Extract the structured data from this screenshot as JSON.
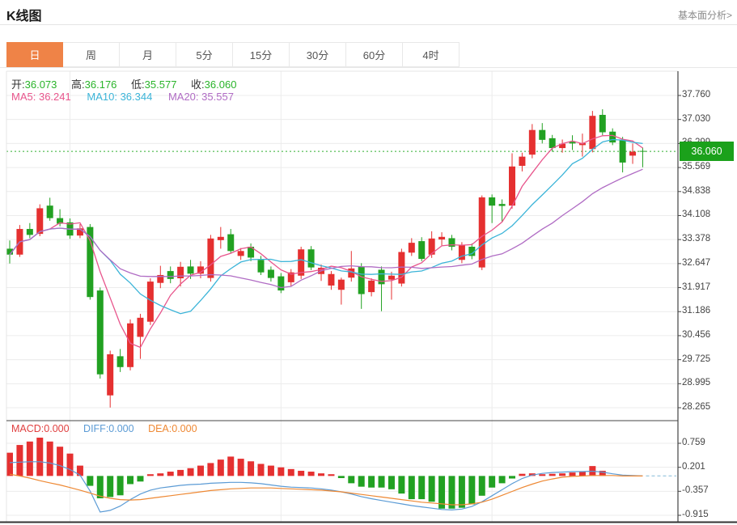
{
  "header": {
    "title": "K线图",
    "link_label": "基本面分析>"
  },
  "tabs": [
    {
      "label": "日",
      "active": true
    },
    {
      "label": "周",
      "active": false
    },
    {
      "label": "月",
      "active": false
    },
    {
      "label": "5分",
      "active": false
    },
    {
      "label": "15分",
      "active": false
    },
    {
      "label": "30分",
      "active": false
    },
    {
      "label": "60分",
      "active": false
    },
    {
      "label": "4时",
      "active": false
    }
  ],
  "legend": {
    "ohlc": [
      {
        "label": "开:",
        "value": "36.073"
      },
      {
        "label": "高:",
        "value": "36.176"
      },
      {
        "label": "低:",
        "value": "35.577"
      },
      {
        "label": "收:",
        "value": "36.060"
      }
    ],
    "ma": [
      {
        "label": "MA5:",
        "value": "36.241"
      },
      {
        "label": "MA10:",
        "value": "36.344"
      },
      {
        "label": "MA20:",
        "value": "35.557"
      }
    ]
  },
  "macd_legend": [
    {
      "label": "MACD:",
      "value": "0.000"
    },
    {
      "label": "DIFF:",
      "value": "0.000"
    },
    {
      "label": "DEA:",
      "value": "0.000"
    }
  ],
  "current_price_label": "36.060",
  "colors": {
    "up": "#e53030",
    "down": "#22a122",
    "ma5": "#e8558c",
    "ma10": "#3bb4d8",
    "ma20": "#b06cc4",
    "diff": "#5b9bd5",
    "dea": "#ee8833",
    "macd_label": "#e04040",
    "accent": "#ef8347",
    "badge": "#1ba11b",
    "value_green": "#2ab42a",
    "grid": "#ececec",
    "axis": "#444444",
    "dotted": "#2faf2f",
    "tail": "#a9cfe4"
  },
  "chart_data": {
    "type": "candlestick",
    "panels": [
      "price",
      "macd"
    ],
    "title": "K线图 (日)",
    "price_ticks": [
      37.76,
      37.03,
      36.299,
      35.569,
      34.838,
      34.108,
      33.378,
      32.647,
      31.917,
      31.186,
      30.456,
      29.725,
      28.995,
      28.265
    ],
    "macd_ticks": [
      0.759,
      0.201,
      -0.357,
      -0.915
    ],
    "current_price": 36.06,
    "ma_periods": [
      5,
      10,
      20
    ],
    "grid_candle_indices": [
      6,
      27,
      48
    ],
    "candles": [
      [
        33.1,
        33.35,
        32.65,
        32.92
      ],
      [
        32.92,
        33.82,
        32.85,
        33.7
      ],
      [
        33.7,
        33.88,
        33.42,
        33.52
      ],
      [
        33.55,
        34.45,
        33.48,
        34.33
      ],
      [
        34.41,
        34.65,
        33.95,
        34.03
      ],
      [
        34.03,
        34.3,
        33.78,
        33.86
      ],
      [
        33.9,
        34.02,
        33.4,
        33.5
      ],
      [
        33.5,
        33.85,
        33.42,
        33.72
      ],
      [
        33.76,
        33.85,
        31.55,
        31.63
      ],
      [
        31.83,
        31.92,
        29.15,
        29.28
      ],
      [
        28.64,
        30.0,
        28.27,
        29.89
      ],
      [
        29.83,
        30.05,
        29.35,
        29.5
      ],
      [
        29.5,
        30.95,
        29.4,
        30.83
      ],
      [
        30.42,
        31.12,
        29.75,
        31.0
      ],
      [
        30.88,
        32.2,
        30.78,
        32.1
      ],
      [
        32.06,
        32.58,
        31.9,
        32.3
      ],
      [
        32.42,
        32.56,
        32.05,
        32.18
      ],
      [
        32.2,
        32.7,
        31.95,
        32.55
      ],
      [
        32.56,
        32.76,
        32.18,
        32.34
      ],
      [
        32.34,
        32.72,
        32.2,
        32.56
      ],
      [
        32.21,
        33.52,
        32.1,
        33.41
      ],
      [
        33.36,
        33.76,
        33.1,
        33.46
      ],
      [
        33.54,
        33.7,
        32.95,
        33.03
      ],
      [
        32.88,
        33.12,
        32.76,
        33.03
      ],
      [
        33.16,
        33.26,
        32.72,
        32.83
      ],
      [
        32.76,
        32.88,
        32.3,
        32.38
      ],
      [
        32.46,
        32.56,
        32.1,
        32.21
      ],
      [
        32.26,
        32.36,
        31.75,
        31.83
      ],
      [
        32.08,
        32.48,
        31.96,
        32.38
      ],
      [
        32.28,
        33.16,
        32.18,
        33.08
      ],
      [
        33.08,
        33.18,
        32.45,
        32.53
      ],
      [
        32.33,
        32.62,
        32.12,
        32.52
      ],
      [
        31.98,
        32.42,
        31.85,
        32.33
      ],
      [
        31.85,
        32.22,
        31.4,
        32.16
      ],
      [
        32.22,
        33.03,
        32.1,
        32.5
      ],
      [
        32.55,
        32.66,
        31.27,
        31.72
      ],
      [
        31.78,
        32.2,
        31.65,
        32.13
      ],
      [
        32.46,
        32.56,
        31.2,
        32.02
      ],
      [
        32.16,
        32.4,
        31.55,
        32.28
      ],
      [
        32.04,
        33.1,
        31.95,
        33.0
      ],
      [
        32.98,
        33.42,
        32.88,
        33.28
      ],
      [
        33.33,
        33.45,
        32.72,
        32.79
      ],
      [
        32.92,
        33.63,
        32.82,
        33.41
      ],
      [
        33.38,
        33.6,
        33.2,
        33.46
      ],
      [
        33.42,
        33.52,
        33.05,
        33.16
      ],
      [
        32.76,
        33.3,
        32.66,
        33.21
      ],
      [
        33.16,
        33.26,
        32.78,
        32.88
      ],
      [
        32.53,
        34.72,
        32.45,
        34.66
      ],
      [
        34.66,
        34.75,
        33.88,
        34.41
      ],
      [
        34.46,
        34.6,
        33.9,
        34.4
      ],
      [
        34.41,
        36.0,
        34.32,
        35.6
      ],
      [
        35.62,
        36.02,
        35.45,
        35.9
      ],
      [
        35.96,
        36.89,
        35.85,
        36.71
      ],
      [
        36.71,
        36.92,
        36.3,
        36.41
      ],
      [
        36.46,
        36.56,
        36.05,
        36.16
      ],
      [
        36.16,
        36.42,
        36.02,
        36.29
      ],
      [
        36.35,
        36.55,
        36.1,
        36.3
      ],
      [
        36.25,
        36.6,
        35.9,
        36.31
      ],
      [
        36.13,
        37.29,
        36.03,
        37.14
      ],
      [
        37.17,
        37.34,
        36.55,
        36.64
      ],
      [
        36.66,
        36.76,
        36.25,
        36.33
      ],
      [
        36.41,
        36.5,
        35.42,
        35.72
      ],
      [
        35.93,
        36.3,
        35.68,
        36.05
      ],
      [
        36.073,
        36.176,
        35.577,
        36.06
      ]
    ],
    "macd_hist": [
      0.54,
      0.72,
      0.8,
      0.89,
      0.8,
      0.68,
      0.52,
      0.24,
      -0.23,
      -0.52,
      -0.49,
      -0.45,
      -0.19,
      -0.13,
      0.04,
      0.06,
      0.1,
      0.14,
      0.18,
      0.24,
      0.3,
      0.38,
      0.45,
      0.4,
      0.34,
      0.28,
      0.24,
      0.2,
      0.16,
      0.12,
      0.1,
      0.06,
      0.04,
      -0.05,
      -0.17,
      -0.25,
      -0.27,
      -0.27,
      -0.31,
      -0.41,
      -0.54,
      -0.54,
      -0.6,
      -0.76,
      -0.76,
      -0.74,
      -0.66,
      -0.46,
      -0.27,
      -0.17,
      -0.06,
      0.05,
      0.06,
      0.04,
      0.05,
      0.06,
      0.08,
      0.1,
      0.23,
      0.12,
      0.0,
      0.0,
      0.0,
      0.0
    ],
    "diff": [
      0.31,
      0.32,
      0.33,
      0.33,
      0.3,
      0.24,
      0.15,
      0.02,
      -0.35,
      -0.84,
      -0.8,
      -0.7,
      -0.55,
      -0.42,
      -0.33,
      -0.28,
      -0.25,
      -0.22,
      -0.2,
      -0.19,
      -0.17,
      -0.16,
      -0.15,
      -0.15,
      -0.16,
      -0.18,
      -0.21,
      -0.24,
      -0.26,
      -0.27,
      -0.28,
      -0.3,
      -0.33,
      -0.37,
      -0.42,
      -0.48,
      -0.53,
      -0.57,
      -0.61,
      -0.65,
      -0.69,
      -0.72,
      -0.75,
      -0.78,
      -0.79,
      -0.77,
      -0.71,
      -0.6,
      -0.46,
      -0.32,
      -0.18,
      -0.06,
      0.02,
      0.06,
      0.08,
      0.09,
      0.1,
      0.1,
      0.11,
      0.09,
      0.05,
      0.02,
      0.01,
      0.0
    ],
    "dea": [
      0.04,
      0.0,
      -0.05,
      -0.11,
      -0.16,
      -0.21,
      -0.27,
      -0.33,
      -0.4,
      -0.47,
      -0.52,
      -0.55,
      -0.56,
      -0.55,
      -0.52,
      -0.49,
      -0.46,
      -0.43,
      -0.4,
      -0.37,
      -0.34,
      -0.32,
      -0.3,
      -0.29,
      -0.28,
      -0.28,
      -0.28,
      -0.29,
      -0.3,
      -0.31,
      -0.32,
      -0.33,
      -0.35,
      -0.37,
      -0.4,
      -0.43,
      -0.46,
      -0.49,
      -0.52,
      -0.55,
      -0.58,
      -0.61,
      -0.63,
      -0.65,
      -0.67,
      -0.67,
      -0.65,
      -0.61,
      -0.54,
      -0.45,
      -0.36,
      -0.27,
      -0.19,
      -0.12,
      -0.07,
      -0.03,
      -0.01,
      0.0,
      0.01,
      0.01,
      0.01,
      0.0,
      0.0,
      0.0
    ]
  }
}
